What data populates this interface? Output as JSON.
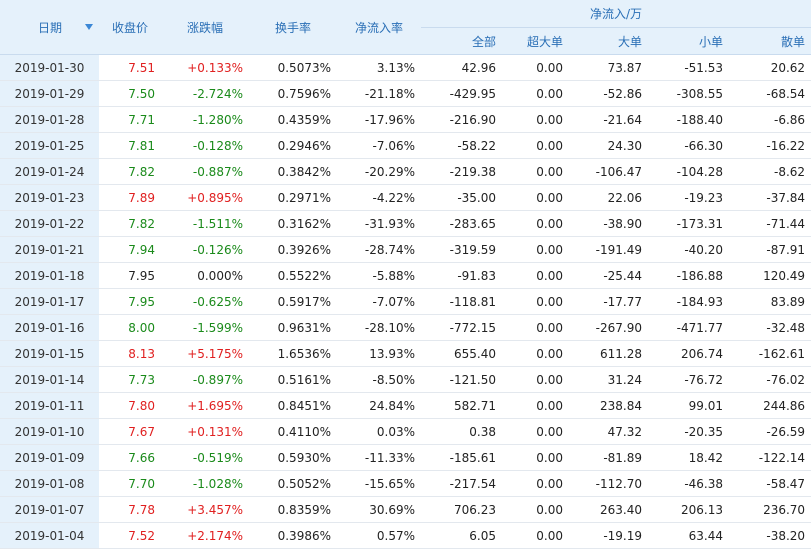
{
  "headers": {
    "date": "日期",
    "close": "收盘价",
    "change": "涨跌幅",
    "turnover": "换手率",
    "net_rate": "净流入率",
    "net_flow_group": "净流入/万",
    "all": "全部",
    "super_large": "超大单",
    "large": "大单",
    "small": "小单",
    "retail": "散单"
  },
  "colors": {
    "up": "#e02020",
    "down": "#1a8a1a",
    "header_bg": "#e5f1fb",
    "header_text": "#2a6fb6"
  },
  "rows": [
    {
      "date": "2019-01-30",
      "close": "7.51",
      "close_dir": "up",
      "change": "+0.133%",
      "change_dir": "up",
      "turnover": "0.5073%",
      "rate": "3.13%",
      "all": "42.96",
      "super": "0.00",
      "large": "73.87",
      "small": "-51.53",
      "retail": "20.62"
    },
    {
      "date": "2019-01-29",
      "close": "7.50",
      "close_dir": "down",
      "change": "-2.724%",
      "change_dir": "down",
      "turnover": "0.7596%",
      "rate": "-21.18%",
      "all": "-429.95",
      "super": "0.00",
      "large": "-52.86",
      "small": "-308.55",
      "retail": "-68.54"
    },
    {
      "date": "2019-01-28",
      "close": "7.71",
      "close_dir": "down",
      "change": "-1.280%",
      "change_dir": "down",
      "turnover": "0.4359%",
      "rate": "-17.96%",
      "all": "-216.90",
      "super": "0.00",
      "large": "-21.64",
      "small": "-188.40",
      "retail": "-6.86"
    },
    {
      "date": "2019-01-25",
      "close": "7.81",
      "close_dir": "down",
      "change": "-0.128%",
      "change_dir": "down",
      "turnover": "0.2946%",
      "rate": "-7.06%",
      "all": "-58.22",
      "super": "0.00",
      "large": "24.30",
      "small": "-66.30",
      "retail": "-16.22"
    },
    {
      "date": "2019-01-24",
      "close": "7.82",
      "close_dir": "down",
      "change": "-0.887%",
      "change_dir": "down",
      "turnover": "0.3842%",
      "rate": "-20.29%",
      "all": "-219.38",
      "super": "0.00",
      "large": "-106.47",
      "small": "-104.28",
      "retail": "-8.62"
    },
    {
      "date": "2019-01-23",
      "close": "7.89",
      "close_dir": "up",
      "change": "+0.895%",
      "change_dir": "up",
      "turnover": "0.2971%",
      "rate": "-4.22%",
      "all": "-35.00",
      "super": "0.00",
      "large": "22.06",
      "small": "-19.23",
      "retail": "-37.84"
    },
    {
      "date": "2019-01-22",
      "close": "7.82",
      "close_dir": "down",
      "change": "-1.511%",
      "change_dir": "down",
      "turnover": "0.3162%",
      "rate": "-31.93%",
      "all": "-283.65",
      "super": "0.00",
      "large": "-38.90",
      "small": "-173.31",
      "retail": "-71.44"
    },
    {
      "date": "2019-01-21",
      "close": "7.94",
      "close_dir": "down",
      "change": "-0.126%",
      "change_dir": "down",
      "turnover": "0.3926%",
      "rate": "-28.74%",
      "all": "-319.59",
      "super": "0.00",
      "large": "-191.49",
      "small": "-40.20",
      "retail": "-87.91"
    },
    {
      "date": "2019-01-18",
      "close": "7.95",
      "close_dir": "flat",
      "change": "0.000%",
      "change_dir": "flat",
      "turnover": "0.5522%",
      "rate": "-5.88%",
      "all": "-91.83",
      "super": "0.00",
      "large": "-25.44",
      "small": "-186.88",
      "retail": "120.49"
    },
    {
      "date": "2019-01-17",
      "close": "7.95",
      "close_dir": "down",
      "change": "-0.625%",
      "change_dir": "down",
      "turnover": "0.5917%",
      "rate": "-7.07%",
      "all": "-118.81",
      "super": "0.00",
      "large": "-17.77",
      "small": "-184.93",
      "retail": "83.89"
    },
    {
      "date": "2019-01-16",
      "close": "8.00",
      "close_dir": "down",
      "change": "-1.599%",
      "change_dir": "down",
      "turnover": "0.9631%",
      "rate": "-28.10%",
      "all": "-772.15",
      "super": "0.00",
      "large": "-267.90",
      "small": "-471.77",
      "retail": "-32.48"
    },
    {
      "date": "2019-01-15",
      "close": "8.13",
      "close_dir": "up",
      "change": "+5.175%",
      "change_dir": "up",
      "turnover": "1.6536%",
      "rate": "13.93%",
      "all": "655.40",
      "super": "0.00",
      "large": "611.28",
      "small": "206.74",
      "retail": "-162.61"
    },
    {
      "date": "2019-01-14",
      "close": "7.73",
      "close_dir": "down",
      "change": "-0.897%",
      "change_dir": "down",
      "turnover": "0.5161%",
      "rate": "-8.50%",
      "all": "-121.50",
      "super": "0.00",
      "large": "31.24",
      "small": "-76.72",
      "retail": "-76.02"
    },
    {
      "date": "2019-01-11",
      "close": "7.80",
      "close_dir": "up",
      "change": "+1.695%",
      "change_dir": "up",
      "turnover": "0.8451%",
      "rate": "24.84%",
      "all": "582.71",
      "super": "0.00",
      "large": "238.84",
      "small": "99.01",
      "retail": "244.86"
    },
    {
      "date": "2019-01-10",
      "close": "7.67",
      "close_dir": "up",
      "change": "+0.131%",
      "change_dir": "up",
      "turnover": "0.4110%",
      "rate": "0.03%",
      "all": "0.38",
      "super": "0.00",
      "large": "47.32",
      "small": "-20.35",
      "retail": "-26.59"
    },
    {
      "date": "2019-01-09",
      "close": "7.66",
      "close_dir": "down",
      "change": "-0.519%",
      "change_dir": "down",
      "turnover": "0.5930%",
      "rate": "-11.33%",
      "all": "-185.61",
      "super": "0.00",
      "large": "-81.89",
      "small": "18.42",
      "retail": "-122.14"
    },
    {
      "date": "2019-01-08",
      "close": "7.70",
      "close_dir": "down",
      "change": "-1.028%",
      "change_dir": "down",
      "turnover": "0.5052%",
      "rate": "-15.65%",
      "all": "-217.54",
      "super": "0.00",
      "large": "-112.70",
      "small": "-46.38",
      "retail": "-58.47"
    },
    {
      "date": "2019-01-07",
      "close": "7.78",
      "close_dir": "up",
      "change": "+3.457%",
      "change_dir": "up",
      "turnover": "0.8359%",
      "rate": "30.69%",
      "all": "706.23",
      "super": "0.00",
      "large": "263.40",
      "small": "206.13",
      "retail": "236.70"
    },
    {
      "date": "2019-01-04",
      "close": "7.52",
      "close_dir": "up",
      "change": "+2.174%",
      "change_dir": "up",
      "turnover": "0.3986%",
      "rate": "0.57%",
      "all": "6.05",
      "super": "0.00",
      "large": "-19.19",
      "small": "63.44",
      "retail": "-38.20"
    }
  ]
}
